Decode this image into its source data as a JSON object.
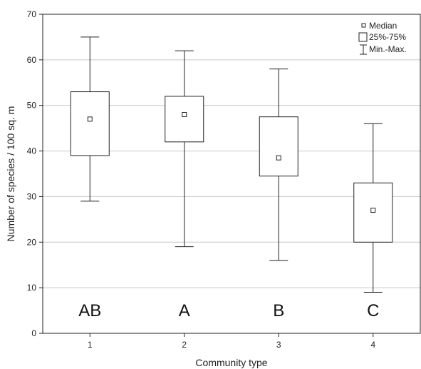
{
  "chart_data": {
    "type": "boxplot",
    "xlabel": "Community type",
    "ylabel": "Number of species / 100 sq. m",
    "ylim": [
      0,
      70
    ],
    "yticks": [
      0,
      10,
      20,
      30,
      40,
      50,
      60,
      70
    ],
    "grid": "horizontal",
    "legend_position": "top-right",
    "legend": {
      "median": "Median",
      "box": "25%-75%",
      "whisker": "Min.-Max."
    },
    "categories": [
      "1",
      "2",
      "3",
      "4"
    ],
    "boxes": [
      {
        "category": "1",
        "min": 29,
        "q1": 39,
        "median": 47,
        "q3": 53,
        "max": 65,
        "group": "AB"
      },
      {
        "category": "2",
        "min": 19,
        "q1": 42,
        "median": 48,
        "q3": 52,
        "max": 62,
        "group": "A"
      },
      {
        "category": "3",
        "min": 16,
        "q1": 34.5,
        "median": 38.5,
        "q3": 47.5,
        "max": 58,
        "group": "B"
      },
      {
        "category": "4",
        "min": 9,
        "q1": 20,
        "median": 27,
        "q3": 33,
        "max": 46,
        "group": "C"
      }
    ],
    "colors": {
      "stroke": "#222222",
      "grid": "#c8c8c8",
      "box_fill": "#ffffff"
    }
  }
}
